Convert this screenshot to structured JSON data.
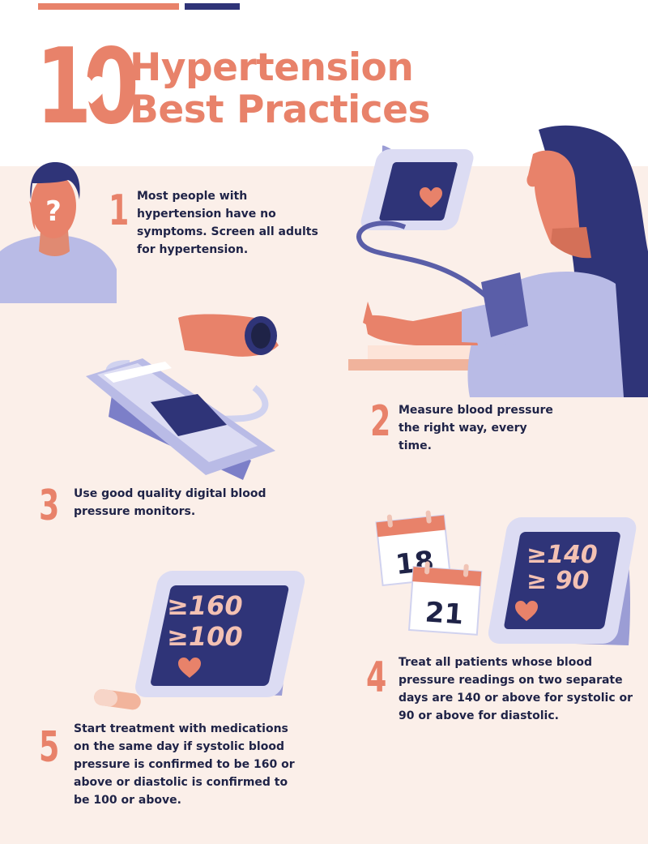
{
  "colors": {
    "accent": "#e8826a",
    "navy": "#2f3478",
    "lavender": "#b9bbe6",
    "background": "#fbefe9"
  },
  "header": {
    "number": "10",
    "title_line1": "Hypertension",
    "title_line2": "Best Practices"
  },
  "practices": [
    {
      "number": "1",
      "text": "Most people with hypertension have no symptoms. Screen all adults for hypertension."
    },
    {
      "number": "2",
      "text": "Measure blood pressure the right way, every time."
    },
    {
      "number": "3",
      "text": "Use good quality digital blood pressure monitors."
    },
    {
      "number": "4",
      "text": "Treat all patients whose blood pressure readings on two separate days are 140 or above for systolic or 90 or above for diastolic."
    },
    {
      "number": "5",
      "text": "Start treatment with medications on the same day if systolic blood pressure is confirmed to be 160 or above or diastolic is confirmed to be 100 or above."
    }
  ],
  "illustrations": {
    "person_icon": "question-mark",
    "calendar_day_1": "18",
    "calendar_day_2": "21",
    "monitor_4_systolic": "≥140",
    "monitor_4_diastolic": "≥ 90",
    "monitor_5_systolic": "≥160",
    "monitor_5_diastolic": "≥100"
  }
}
